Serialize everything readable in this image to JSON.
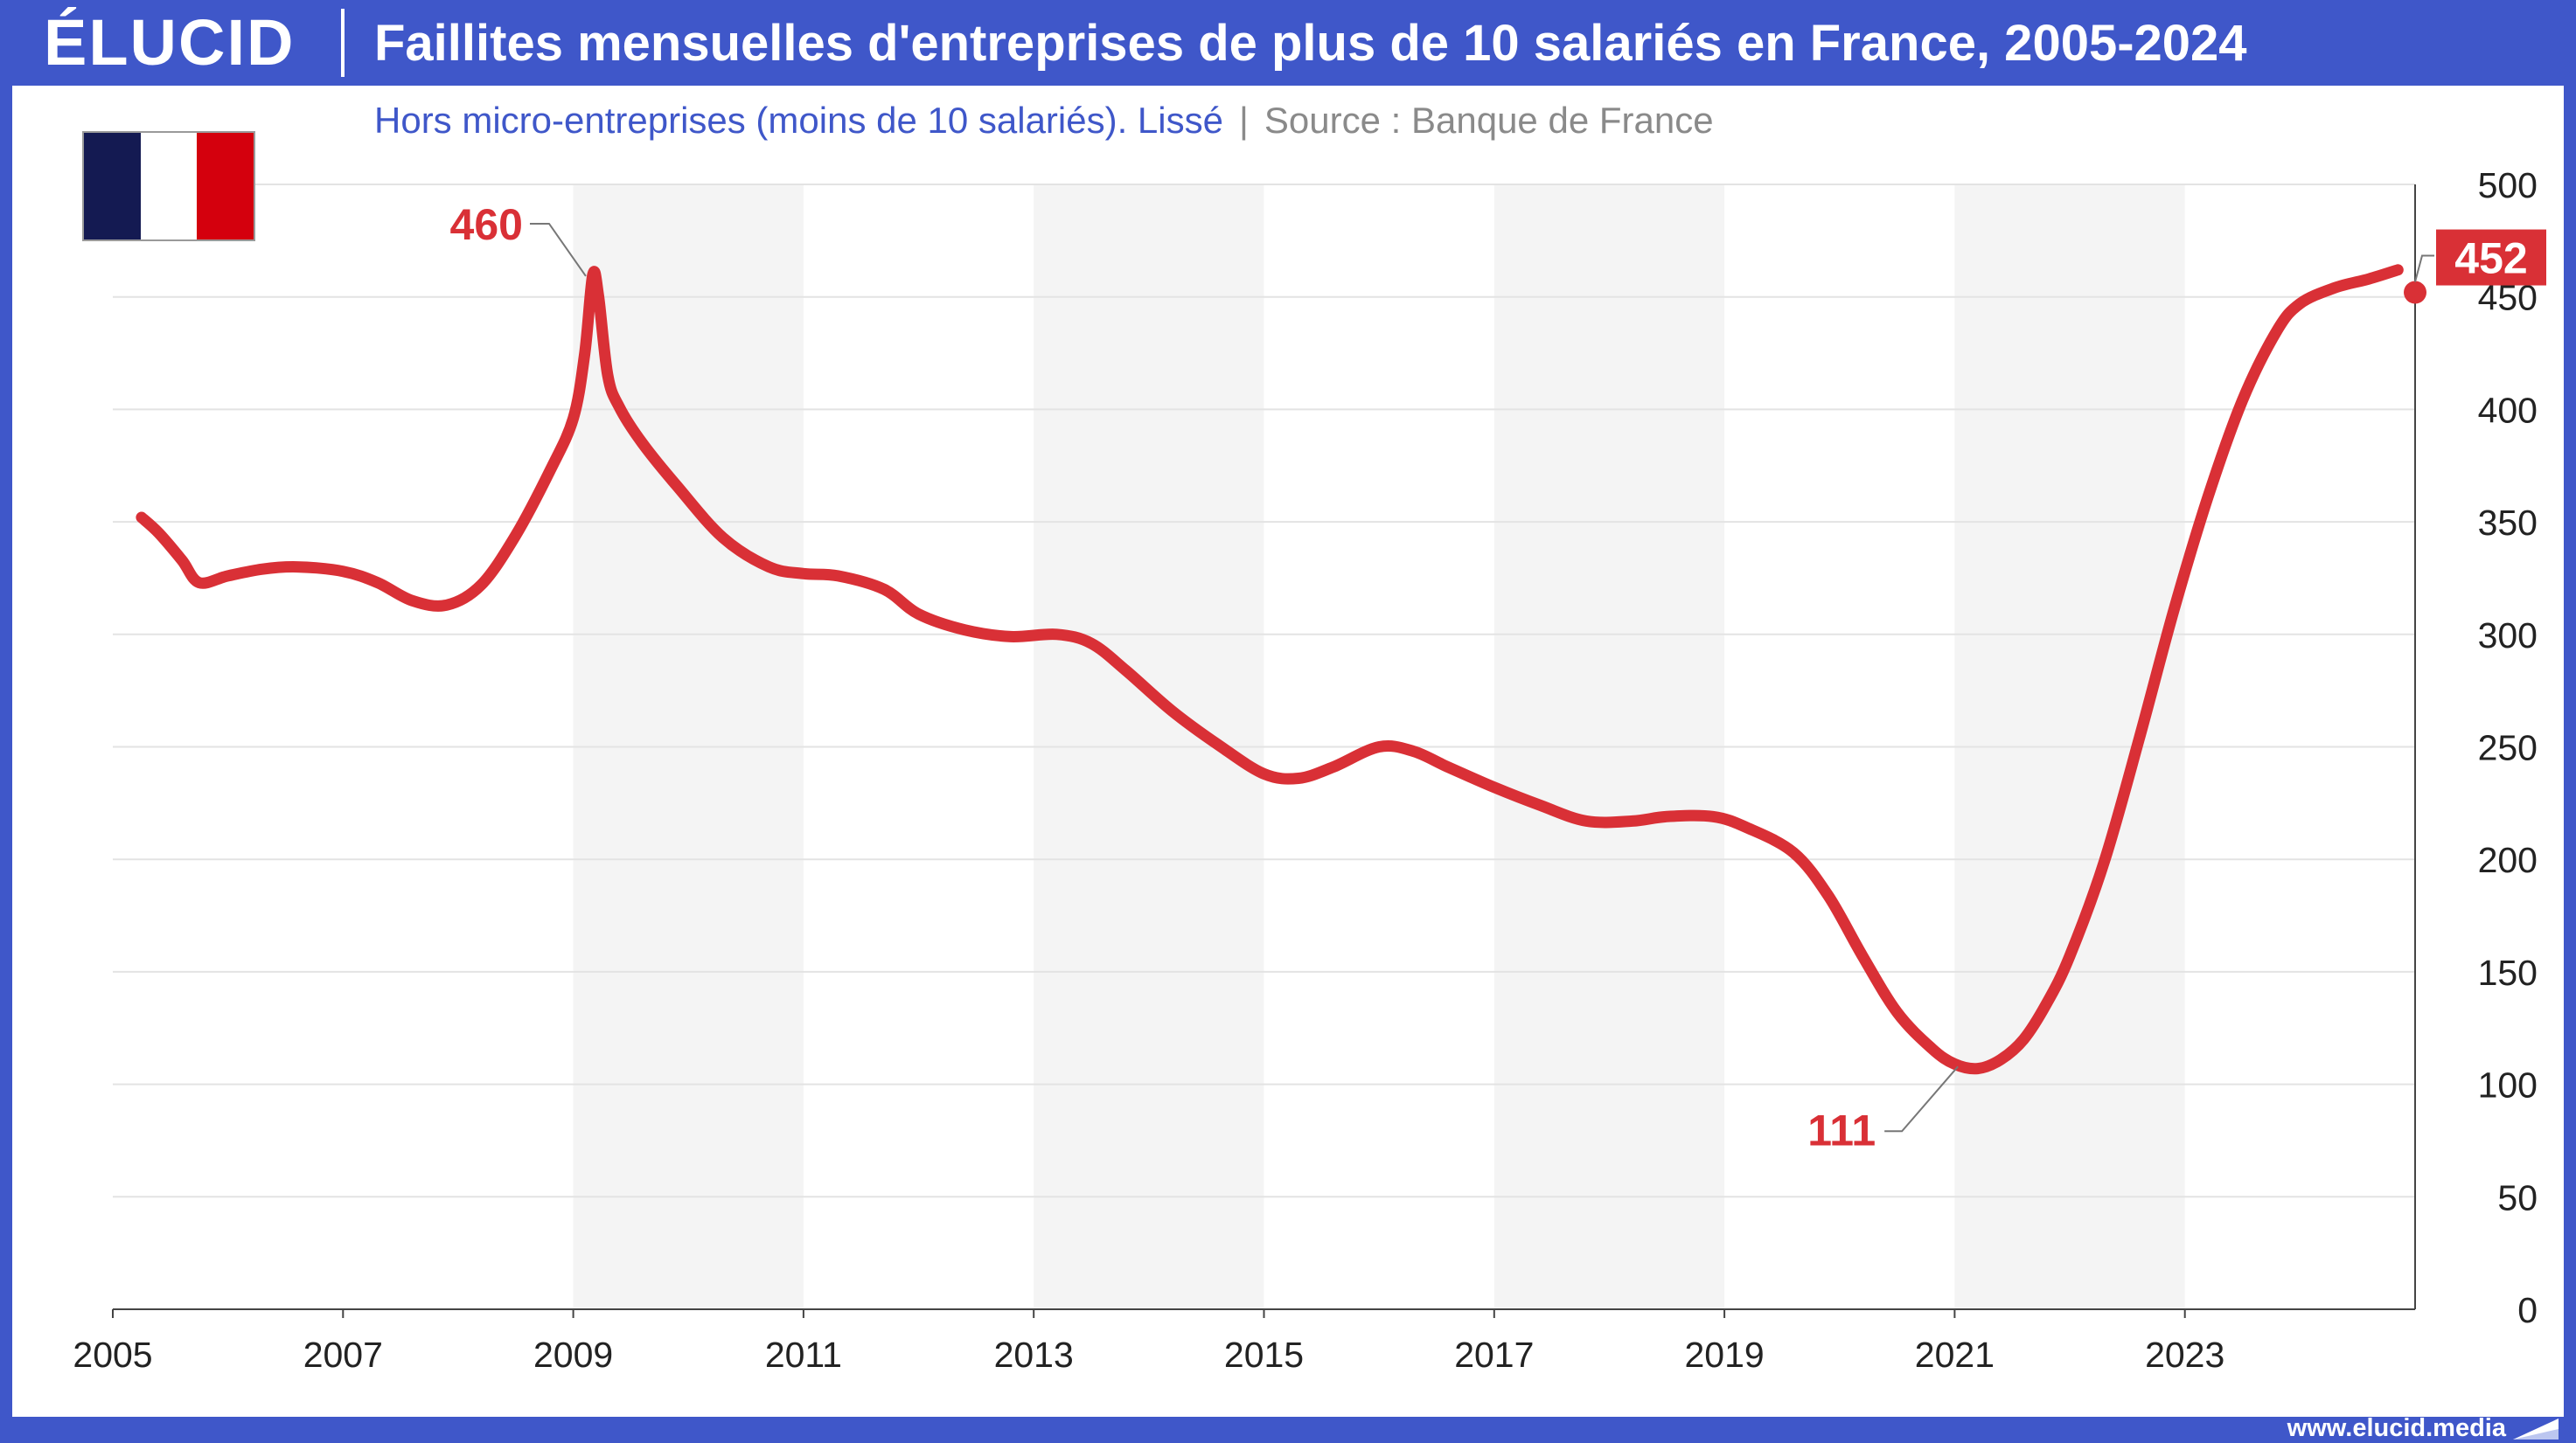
{
  "header": {
    "logo": "ÉLUCID",
    "title": "Faillites mensuelles d'entreprises de plus de 10 salariés en France, 2005-2024"
  },
  "subtitle": {
    "main": "Hors micro-entreprises (moins de 10 salariés). Lissé",
    "separator": "|",
    "source": "Source : Banque de France"
  },
  "flag": {
    "country": "France",
    "colors": [
      "#141a52",
      "#ffffff",
      "#d4000d"
    ]
  },
  "footer": {
    "url": "www.elucid.media"
  },
  "colors": {
    "brand": "#3f57c9",
    "line": "#d93036",
    "band": "#f4f4f4",
    "grid": "#e3e3e3",
    "label": "#d93036"
  },
  "chart_data": {
    "type": "line",
    "title": "Faillites mensuelles d'entreprises de plus de 10 salariés en France, 2005-2024",
    "subtitle": "Hors micro-entreprises (moins de 10 salariés). Lissé",
    "xlabel": "",
    "ylabel": "",
    "xlim": [
      2005,
      2025
    ],
    "ylim": [
      0,
      500
    ],
    "x_ticks": [
      "2005",
      "2007",
      "2009",
      "2011",
      "2013",
      "2015",
      "2017",
      "2019",
      "2021",
      "2023"
    ],
    "y_ticks": [
      "0",
      "50",
      "100",
      "150",
      "200",
      "250",
      "300",
      "350",
      "400",
      "450",
      "500"
    ],
    "y_axis_position": "right",
    "grid": true,
    "series": [
      {
        "x": [
          2005.25,
          2005.4,
          2005.6,
          2005.75,
          2006.0,
          2006.3,
          2006.6,
          2007.0,
          2007.3,
          2007.6,
          2007.9,
          2008.2,
          2008.5,
          2008.8,
          2009.0,
          2009.1,
          2009.17,
          2009.22,
          2009.3,
          2009.4,
          2009.6,
          2009.9,
          2010.3,
          2010.7,
          2011.0,
          2011.3,
          2011.7,
          2012.0,
          2012.4,
          2012.8,
          2013.2,
          2013.5,
          2013.8,
          2014.2,
          2014.6,
          2015.0,
          2015.3,
          2015.6,
          2016.0,
          2016.3,
          2016.6,
          2017.0,
          2017.4,
          2017.8,
          2018.2,
          2018.5,
          2018.9,
          2019.2,
          2019.6,
          2019.9,
          2020.2,
          2020.5,
          2020.8,
          2021.0,
          2021.2,
          2021.4,
          2021.6,
          2021.8,
          2022.0,
          2022.3,
          2022.6,
          2022.9,
          2023.2,
          2023.5,
          2023.8,
          2024.0,
          2024.3,
          2024.6,
          2024.85
        ],
        "values": [
          352,
          345,
          333,
          323,
          326,
          329,
          330,
          328,
          323,
          315,
          313,
          322,
          344,
          373,
          396,
          425,
          460,
          450,
          415,
          401,
          385,
          366,
          343,
          330,
          327,
          326,
          320,
          309,
          302,
          299,
          300,
          296,
          284,
          266,
          251,
          238,
          236,
          241,
          250,
          248,
          241,
          232,
          224,
          217,
          217,
          219,
          219,
          214,
          203,
          184,
          157,
          132,
          116,
          109,
          107,
          111,
          120,
          136,
          157,
          199,
          253,
          310,
          361,
          404,
          435,
          447,
          454,
          458,
          462
        ]
      }
    ],
    "annotations": [
      {
        "label": "460",
        "x": 2009.17,
        "y": 460
      },
      {
        "label": "111",
        "x": 2021.15,
        "y": 111
      },
      {
        "label": "452",
        "x": 2025.0,
        "y": 452,
        "marker": true
      }
    ],
    "shaded_bands": [
      [
        2009,
        2011
      ],
      [
        2013,
        2015
      ],
      [
        2017,
        2019
      ],
      [
        2021,
        2023
      ]
    ]
  }
}
